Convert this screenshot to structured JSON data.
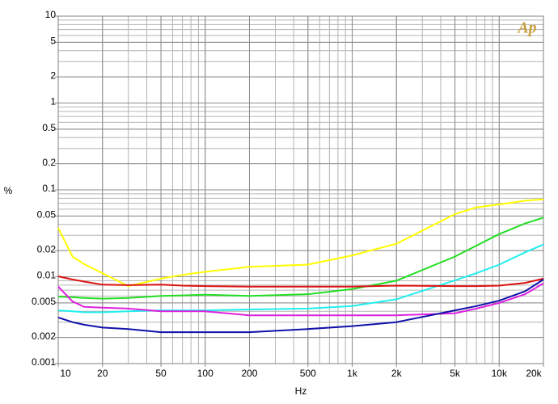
{
  "chart_data": {
    "type": "line",
    "log_x": true,
    "log_y": true,
    "grid": true,
    "logo": "Ap",
    "xlabel": "Hz",
    "ylabel": "%",
    "x": [
      10,
      12.5,
      15,
      20,
      30,
      50,
      70,
      100,
      200,
      500,
      1000,
      2000,
      5000,
      7000,
      10000,
      15000,
      20000
    ],
    "xlim": [
      10,
      20000
    ],
    "xticks": [
      10,
      20,
      50,
      100,
      200,
      500,
      {
        "value": 1000,
        "label": "1k"
      },
      {
        "value": 2000,
        "label": "2k"
      },
      {
        "value": 5000,
        "label": "5k"
      },
      {
        "value": 10000,
        "label": "10k"
      },
      {
        "value": 20000,
        "label": "20k"
      }
    ],
    "ylim": [
      0.001,
      10
    ],
    "yticks": [
      10,
      5,
      2,
      1,
      0.5,
      0.2,
      0.1,
      0.05,
      0.02,
      0.01,
      0.005,
      0.002,
      0.001
    ],
    "series": [
      {
        "color": "#ffff00",
        "values": [
          0.0366,
          0.0171,
          0.014,
          0.011,
          0.0078,
          0.0095,
          0.0105,
          0.0114,
          0.013,
          0.0138,
          0.0176,
          0.024,
          0.0526,
          0.063,
          0.068,
          0.075,
          0.078
        ]
      },
      {
        "color": "#22dd22",
        "values": [
          0.0059,
          0.0058,
          0.0057,
          0.0056,
          0.0057,
          0.006,
          0.0061,
          0.0062,
          0.006,
          0.0063,
          0.0072,
          0.009,
          0.0171,
          0.0228,
          0.031,
          0.041,
          0.048
        ]
      },
      {
        "color": "#22eeee",
        "values": [
          0.0041,
          0.004,
          0.0039,
          0.0039,
          0.004,
          0.0041,
          0.0041,
          0.0041,
          0.0042,
          0.0043,
          0.0046,
          0.0055,
          0.0091,
          0.011,
          0.0138,
          0.0191,
          0.0235
        ]
      },
      {
        "color": "#dd1111",
        "values": [
          0.0101,
          0.0093,
          0.0088,
          0.0081,
          0.008,
          0.0081,
          0.0079,
          0.0078,
          0.0077,
          0.0077,
          0.0077,
          0.0079,
          0.0078,
          0.0078,
          0.0079,
          0.0085,
          0.0095
        ]
      },
      {
        "color": "#dd22dd",
        "values": [
          0.0077,
          0.0052,
          0.0045,
          0.0044,
          0.0043,
          0.004,
          0.004,
          0.004,
          0.0036,
          0.0036,
          0.0036,
          0.0036,
          0.0038,
          0.0043,
          0.005,
          0.0063,
          0.0084
        ]
      },
      {
        "color": "#1111aa",
        "values": [
          0.0034,
          0.003,
          0.0028,
          0.0026,
          0.0025,
          0.0023,
          0.0023,
          0.0023,
          0.0023,
          0.0025,
          0.0027,
          0.003,
          0.0041,
          0.0046,
          0.0053,
          0.0068,
          0.0093
        ]
      }
    ]
  }
}
